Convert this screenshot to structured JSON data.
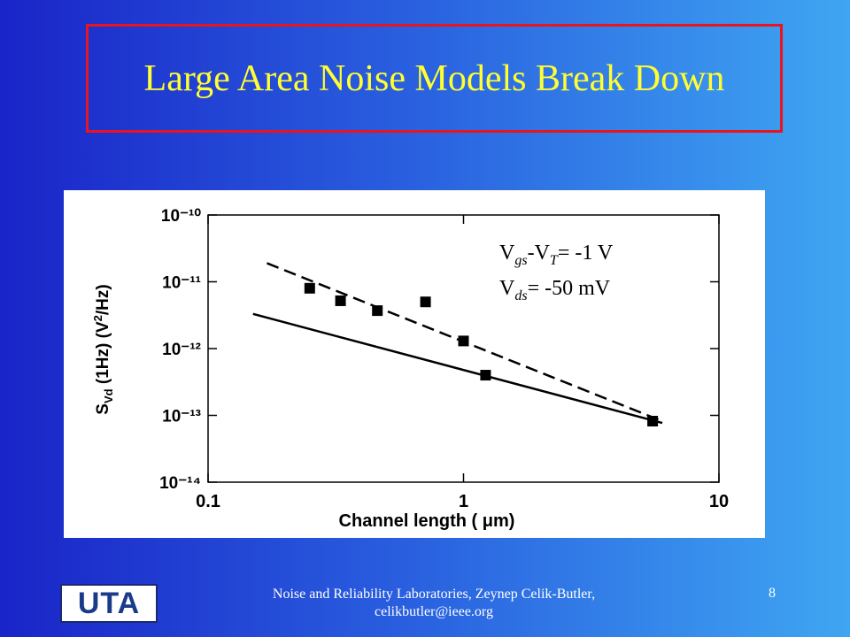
{
  "slide": {
    "title": "Large Area Noise Models Break Down",
    "footer": "Noise and Reliability Laboratories, Zeynep Celik-Butler, celikbutler@ieee.org",
    "page": "8",
    "logo": "UTA"
  },
  "chart_data": {
    "type": "scatter",
    "xlabel": "Channel length ( μm)",
    "ylabel": {
      "main": "S",
      "sub": "Vd",
      "rest": " (1Hz) (V",
      "sup": "2",
      "end": "/Hz)"
    },
    "annotations": [
      {
        "parts": [
          {
            "text": "V",
            "style": "normal"
          },
          {
            "text": "gs",
            "style": "sub"
          },
          {
            "text": "-V",
            "style": "normal"
          },
          {
            "text": "T",
            "style": "sub"
          },
          {
            "text": "= -1 V",
            "style": "normal"
          }
        ]
      },
      {
        "parts": [
          {
            "text": "V",
            "style": "normal"
          },
          {
            "text": "ds",
            "style": "sub"
          },
          {
            "text": "= -50 mV",
            "style": "normal"
          }
        ]
      }
    ],
    "xlog": true,
    "ylog": true,
    "xlim": [
      0.1,
      10
    ],
    "ylim": [
      1e-14,
      1e-10
    ],
    "xticks": [
      0.1,
      1,
      10
    ],
    "yticks": [
      {
        "value": 1e-14,
        "label": "10⁻¹⁴"
      },
      {
        "value": 1e-13,
        "label": "10⁻¹³"
      },
      {
        "value": 1e-12,
        "label": "10⁻¹²"
      },
      {
        "value": 1e-11,
        "label": "10⁻¹¹"
      },
      {
        "value": 1e-10,
        "label": "10⁻¹⁰"
      }
    ],
    "series": [
      {
        "type": "scatter",
        "color": "#000000",
        "x": [
          0.25,
          0.33,
          0.46,
          0.71,
          1.0,
          1.22,
          5.5
        ],
        "values": [
          8e-12,
          5.2e-12,
          3.7e-12,
          5e-12,
          1.3e-12,
          4e-13,
          8.2e-14
        ]
      },
      {
        "type": "line",
        "style": "solid",
        "color": "#000000",
        "x": [
          0.15,
          6.0
        ],
        "values": [
          3.3e-12,
          7.7e-14
        ]
      },
      {
        "type": "line",
        "style": "dashed",
        "color": "#000000",
        "x": [
          0.17,
          6.0
        ],
        "values": [
          1.9e-11,
          8.2e-14
        ]
      }
    ]
  }
}
